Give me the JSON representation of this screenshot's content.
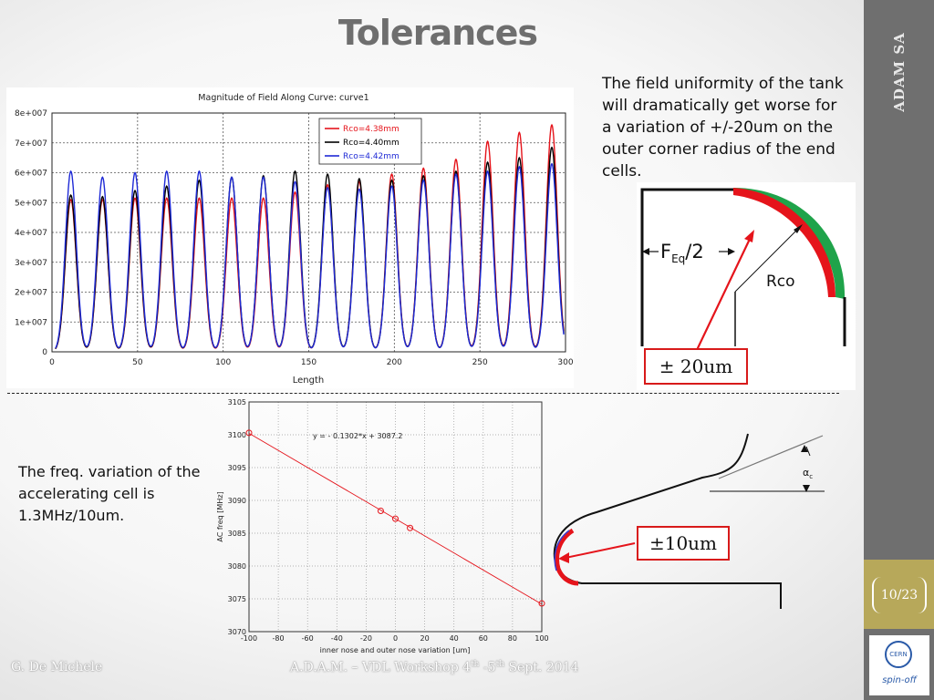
{
  "slide": {
    "title": "Tolerances",
    "brand": "ADAM SA",
    "page": "10/23",
    "logo_top": "CERN",
    "logo_bottom": "spin-off",
    "author": "G. De Michele",
    "event_prefix": "A.D.A.M. – VDL Workshop  4",
    "event_sup1": "th",
    "event_mid": " -5",
    "event_sup2": "th",
    "event_suffix": "  Sept. 2014"
  },
  "text": {
    "description_top": "The field uniformity of the tank will dramatically get worse for a variation of +/-20um on the outer corner radius of the end cells.",
    "description_bottom": "The freq. variation of the accelerating cell is 1.3MHz/10um."
  },
  "diagram": {
    "feq_label": "F",
    "feq_sub": "Eq",
    "feq_rest": "/2",
    "rco_label": "Rco",
    "callout_top": "± 20um",
    "callout_bottom": "±10um",
    "alpha_label": "α",
    "alpha_sub": "c",
    "colors": {
      "red": "#e5141b",
      "green": "#1fa34a",
      "blue": "#3a3ad0",
      "callout_border": "#d81a1a"
    }
  },
  "chart_data": [
    {
      "type": "line",
      "title": "Magnitude of Field Along Curve: curve1",
      "xlabel": "Length",
      "ylabel": "",
      "xlim": [
        0,
        300
      ],
      "ylim": [
        0,
        80000000
      ],
      "xticks": [
        "0",
        "50",
        "100",
        "150",
        "200",
        "250",
        "300"
      ],
      "yticks": [
        "0",
        "1e+007",
        "2e+007",
        "3e+007",
        "4e+007",
        "5e+007",
        "6e+007",
        "7e+007",
        "8e+007"
      ],
      "grid": true,
      "legend_position": "top-right",
      "peak_x": [
        11,
        29.5,
        48.5,
        67,
        86,
        105,
        123.5,
        142,
        161,
        179.5,
        198.5,
        217,
        236,
        254.5,
        273,
        292
      ],
      "series": [
        {
          "name": "Rco=4.38mm",
          "color": "#e5141b",
          "peaks": [
            51000000,
            51000000,
            51500000,
            51500000,
            51500000,
            51500000,
            51500000,
            53500000,
            56000000,
            57000000,
            59500000,
            61500000,
            64500000,
            70500000,
            73500000,
            76000000
          ]
        },
        {
          "name": "Rco=4.40mm",
          "color": "#000000",
          "peaks": [
            52500000,
            52000000,
            54000000,
            55500000,
            57500000,
            58500000,
            59000000,
            60500000,
            59500000,
            58000000,
            57500000,
            59000000,
            60500000,
            63500000,
            65000000,
            68500000
          ]
        },
        {
          "name": "Rco=4.42mm",
          "color": "#1f2ad6",
          "peaks": [
            60500000,
            58500000,
            60000000,
            60500000,
            60500000,
            58500000,
            58500000,
            57000000,
            55000000,
            54500000,
            55500000,
            57500000,
            59500000,
            60500000,
            62000000,
            63000000
          ]
        }
      ]
    },
    {
      "type": "scatter",
      "title": "",
      "xlabel": "inner nose and outer nose variation [um]",
      "ylabel": "AC freq [MHz]",
      "xlim": [
        -100,
        100
      ],
      "ylim": [
        3070,
        3105
      ],
      "xticks": [
        "-100",
        "-80",
        "-60",
        "-40",
        "-20",
        "0",
        "20",
        "40",
        "60",
        "80",
        "100"
      ],
      "yticks": [
        "3070",
        "3075",
        "3080",
        "3085",
        "3090",
        "3095",
        "3100",
        "3105"
      ],
      "grid": true,
      "annotation": "y = - 0.1302*x + 3087.2",
      "points": [
        {
          "x": -100,
          "y": 3100.3
        },
        {
          "x": -10,
          "y": 3088.4
        },
        {
          "x": 0,
          "y": 3087.2
        },
        {
          "x": 10,
          "y": 3085.8
        },
        {
          "x": 100,
          "y": 3074.3
        }
      ],
      "fit": {
        "slope": -0.1302,
        "intercept": 3087.2
      },
      "color": "#e5141b"
    }
  ]
}
